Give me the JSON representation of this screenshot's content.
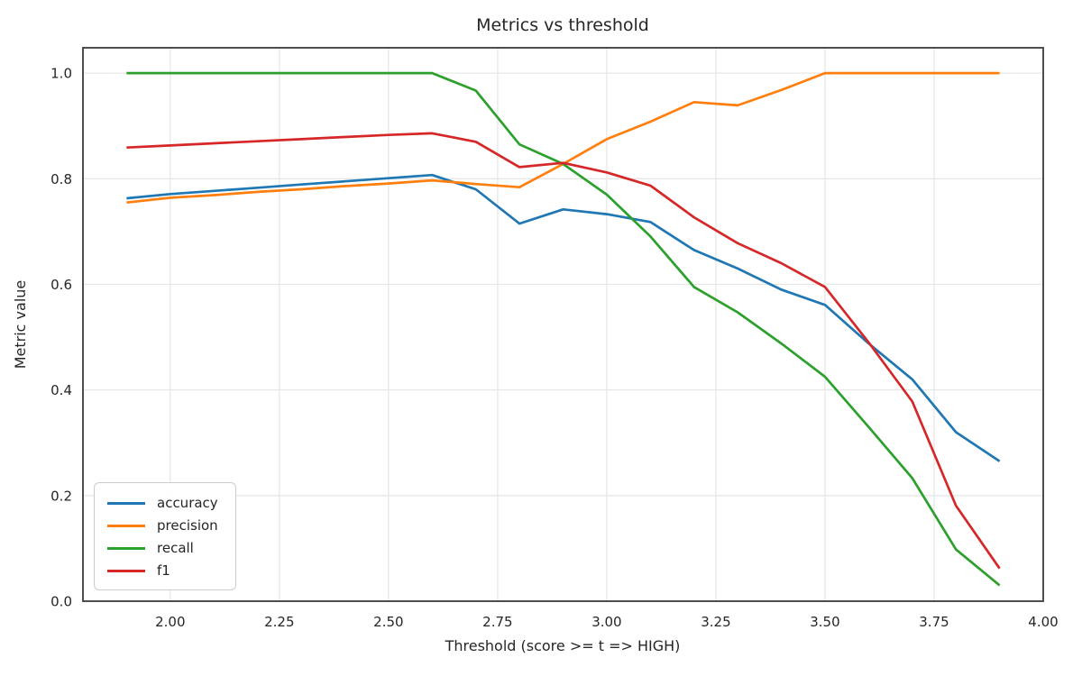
{
  "chart_data": {
    "type": "line",
    "title": "Metrics vs threshold",
    "xlabel": "Threshold (score >= t => HIGH)",
    "ylabel": "Metric value",
    "xlim": [
      1.8,
      4.0
    ],
    "ylim": [
      0.0,
      1.048
    ],
    "grid": true,
    "legend_position": "lower left",
    "x_ticks": {
      "values": [
        2.0,
        2.25,
        2.5,
        2.75,
        3.0,
        3.25,
        3.5,
        3.75,
        4.0
      ],
      "labels": [
        "2.00",
        "2.25",
        "2.50",
        "2.75",
        "3.00",
        "3.25",
        "3.50",
        "3.75",
        "4.00"
      ]
    },
    "y_ticks": {
      "values": [
        0.0,
        0.2,
        0.4,
        0.6,
        0.8,
        1.0
      ],
      "labels": [
        "0.0",
        "0.2",
        "0.4",
        "0.6",
        "0.8",
        "1.0"
      ]
    },
    "x": [
      1.9,
      2.0,
      2.1,
      2.2,
      2.3,
      2.4,
      2.5,
      2.6,
      2.7,
      2.8,
      2.9,
      3.0,
      3.1,
      3.2,
      3.3,
      3.4,
      3.5,
      3.6,
      3.7,
      3.8,
      3.9
    ],
    "series": [
      {
        "name": "accuracy",
        "color": "#1f77b4",
        "values": [
          0.763,
          0.771,
          0.777,
          0.783,
          0.789,
          0.795,
          0.801,
          0.807,
          0.78,
          0.715,
          0.742,
          0.733,
          0.718,
          0.665,
          0.63,
          0.59,
          0.561,
          0.488,
          0.42,
          0.32,
          0.265
        ]
      },
      {
        "name": "precision",
        "color": "#ff7f0e",
        "values": [
          0.755,
          0.764,
          0.769,
          0.775,
          0.78,
          0.786,
          0.791,
          0.797,
          0.79,
          0.784,
          0.828,
          0.875,
          0.908,
          0.945,
          0.939,
          0.968,
          1.0,
          1.0,
          1.0,
          1.0,
          1.0
        ]
      },
      {
        "name": "recall",
        "color": "#2ca02c",
        "values": [
          1.0,
          1.0,
          1.0,
          1.0,
          1.0,
          1.0,
          1.0,
          1.0,
          0.967,
          0.865,
          0.828,
          0.77,
          0.691,
          0.595,
          0.547,
          0.488,
          0.425,
          0.33,
          0.233,
          0.098,
          0.03
        ]
      },
      {
        "name": "f1",
        "color": "#d62728",
        "values": [
          0.859,
          0.863,
          0.867,
          0.871,
          0.875,
          0.879,
          0.883,
          0.886,
          0.87,
          0.822,
          0.83,
          0.812,
          0.787,
          0.727,
          0.678,
          0.64,
          0.595,
          0.49,
          0.378,
          0.181,
          0.062
        ]
      }
    ],
    "plot_style": {
      "grid_color": "#e7e7e7",
      "spine_color": "#3b3b3b",
      "background": "#ffffff"
    }
  }
}
